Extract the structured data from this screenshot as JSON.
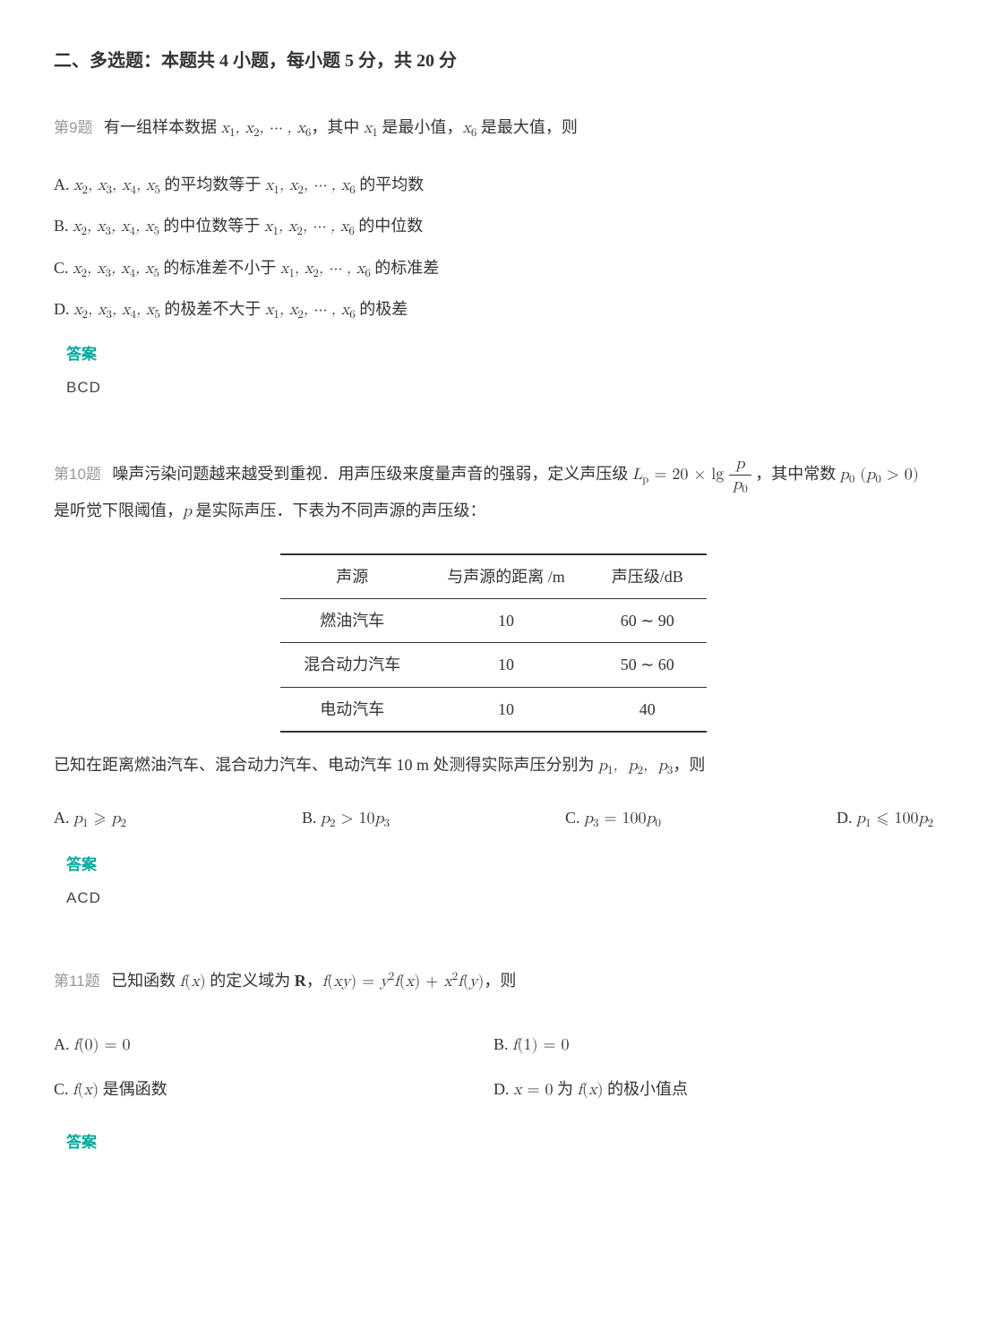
{
  "section_title": "二、多选题：本题共 4 小题，每小题 5 分，共 20 分",
  "answer_label": "答案",
  "q9": {
    "label": "第9题",
    "stem_prefix": "有一组样本数据 ",
    "stem_mid1": "，其中 ",
    "stem_mid2": " 是最小值，",
    "stem_suffix": " 是最大值，则",
    "optA_suffix": " 的平均数等于 ",
    "optA_end": " 的平均数",
    "optB_suffix": " 的中位数等于 ",
    "optB_end": " 的中位数",
    "optC_suffix": " 的标准差不小于 ",
    "optC_end": " 的标准差",
    "optD_suffix": " 的极差不大于 ",
    "optD_end": " 的极差",
    "answer": "BCD"
  },
  "q10": {
    "label": "第10题",
    "stem_a": "噪声污染问题越来越受到重视．用声压级来度量声音的强弱，定义声压级 ",
    "stem_b": "，其中常数 ",
    "stem_c": " 是听觉下限阈值，",
    "stem_d": " 是实际声压．下表为不同声源的声压级：",
    "table": {
      "headers": [
        "声源",
        "与声源的距离 /m",
        "声压级/dB"
      ],
      "rows": [
        [
          "燃油汽车",
          "10",
          "60 ∼ 90"
        ],
        [
          "混合动力汽车",
          "10",
          "50 ∼ 60"
        ],
        [
          "电动汽车",
          "10",
          "40"
        ]
      ]
    },
    "stem2_a": "已知在距离燃油汽车、混合动力汽车、电动汽车 10 m 处测得实际声压分别为 ",
    "stem2_b": "，则",
    "answer": "ACD"
  },
  "q11": {
    "label": "第11题",
    "stem_a": "已知函数 ",
    "stem_b": " 的定义域为 ",
    "stem_c": "，",
    "stem_d": "，则",
    "optC": " 是偶函数",
    "optD_a": " 为 ",
    "optD_b": " 的极小值点"
  }
}
